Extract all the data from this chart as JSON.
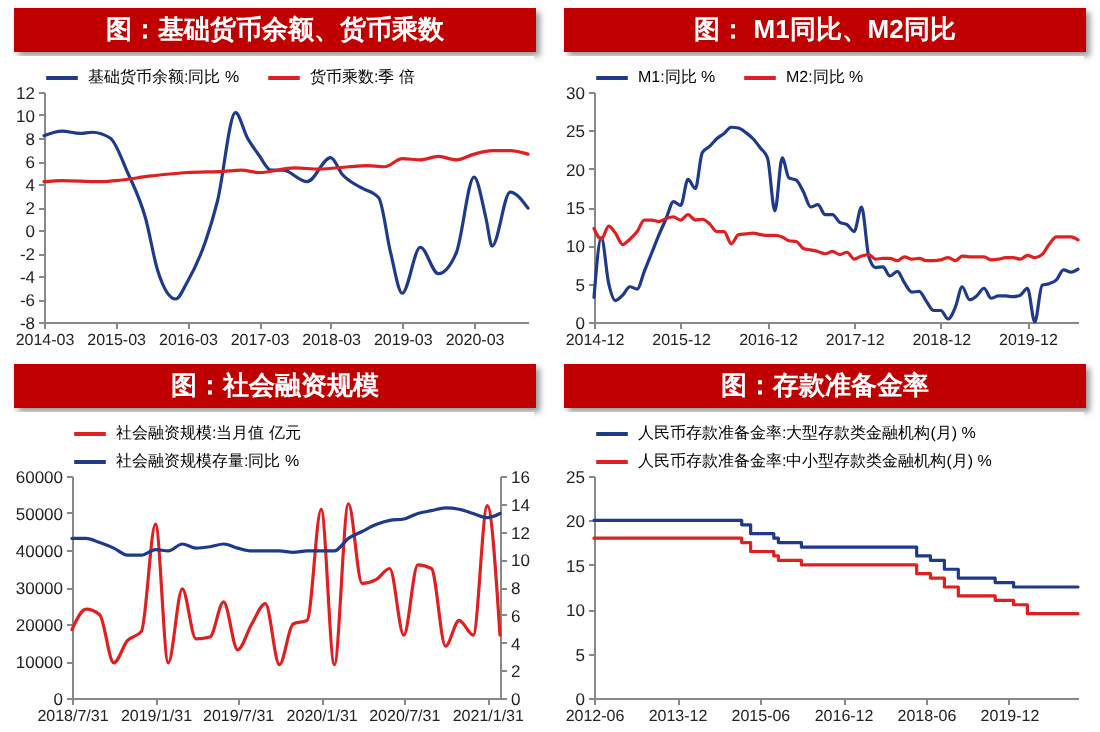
{
  "chart_data": [
    {
      "type": "line",
      "title": "图：基础货币余额、货币乘数",
      "legend": "top",
      "xlim": [
        "2014-03",
        "2020-12"
      ],
      "xticks": [
        "2014-03",
        "2015-03",
        "2016-03",
        "2017-03",
        "2018-03",
        "2019-03",
        "2020-03"
      ],
      "ylim": [
        -8,
        12
      ],
      "yticks": [
        -8,
        -6,
        -4,
        -2,
        0,
        2,
        4,
        6,
        8,
        10,
        12
      ],
      "series": [
        {
          "name": "基础货币余额:同比 %",
          "color": "#1f3a8a",
          "x": [
            "2014-03",
            "2014-06",
            "2014-09",
            "2014-11",
            "2015-02",
            "2015-05",
            "2015-08",
            "2015-10",
            "2016-01",
            "2016-03",
            "2016-06",
            "2016-08",
            "2016-11",
            "2017-01",
            "2017-03",
            "2017-05",
            "2017-07",
            "2017-11",
            "2018-03",
            "2018-05",
            "2018-08",
            "2018-11",
            "2019-01",
            "2019-03",
            "2019-06",
            "2019-09",
            "2019-12",
            "2020-03",
            "2020-05",
            "2020-06",
            "2020-09",
            "2020-12"
          ],
          "values": [
            8.2,
            8.6,
            8.4,
            8.5,
            8.0,
            5.0,
            1.0,
            -3.5,
            -6.0,
            -4.5,
            -1.0,
            2.5,
            10.2,
            8.0,
            6.5,
            5.2,
            5.2,
            4.2,
            6.3,
            4.8,
            3.7,
            2.8,
            -2.0,
            -5.5,
            -1.5,
            -3.8,
            -2.0,
            4.6,
            1.0,
            -1.4,
            3.3,
            1.9
          ]
        },
        {
          "name": "货币乘数:季 倍",
          "color": "#e02020",
          "x": [
            "2014-03",
            "2014-06",
            "2014-12",
            "2015-03",
            "2015-09",
            "2016-03",
            "2016-09",
            "2016-12",
            "2017-03",
            "2017-09",
            "2018-01",
            "2018-06",
            "2018-09",
            "2018-12",
            "2019-03",
            "2019-06",
            "2019-09",
            "2019-12",
            "2020-03",
            "2020-06",
            "2020-09",
            "2020-12"
          ],
          "values": [
            4.2,
            4.3,
            4.2,
            4.3,
            4.7,
            5.0,
            5.1,
            5.2,
            5.0,
            5.4,
            5.3,
            5.5,
            5.6,
            5.5,
            6.2,
            6.1,
            6.4,
            6.1,
            6.6,
            6.9,
            6.9,
            6.6
          ]
        }
      ]
    },
    {
      "type": "line",
      "title": "图： M1同比、M2同比",
      "legend": "top",
      "xlim": [
        "2014-12",
        "2020-07"
      ],
      "xticks": [
        "2014-12",
        "2015-12",
        "2016-12",
        "2017-12",
        "2018-12",
        "2019-12"
      ],
      "ylim": [
        0,
        30
      ],
      "yticks": [
        0,
        5,
        10,
        15,
        20,
        25,
        30
      ],
      "x": [
        "2014-12",
        "2015-01",
        "2015-02",
        "2015-03",
        "2015-04",
        "2015-05",
        "2015-06",
        "2015-07",
        "2015-08",
        "2015-09",
        "2015-10",
        "2015-11",
        "2015-12",
        "2016-01",
        "2016-02",
        "2016-03",
        "2016-04",
        "2016-05",
        "2016-06",
        "2016-07",
        "2016-08",
        "2016-09",
        "2016-10",
        "2016-11",
        "2016-12",
        "2017-01",
        "2017-02",
        "2017-03",
        "2017-04",
        "2017-05",
        "2017-06",
        "2017-07",
        "2017-08",
        "2017-09",
        "2017-10",
        "2017-11",
        "2017-12",
        "2018-01",
        "2018-02",
        "2018-03",
        "2018-04",
        "2018-05",
        "2018-06",
        "2018-07",
        "2018-08",
        "2018-09",
        "2018-10",
        "2018-11",
        "2018-12",
        "2019-01",
        "2019-02",
        "2019-03",
        "2019-04",
        "2019-05",
        "2019-06",
        "2019-07",
        "2019-08",
        "2019-09",
        "2019-10",
        "2019-11",
        "2019-12",
        "2020-01",
        "2020-02",
        "2020-03",
        "2020-04",
        "2020-05",
        "2020-06",
        "2020-07"
      ],
      "series": [
        {
          "name": "M1:同比 %",
          "color": "#1f3a8a",
          "values": [
            3.2,
            11,
            5,
            2.8,
            3.5,
            4.6,
            4.3,
            6.6,
            9,
            11.4,
            13.5,
            15.7,
            15.2,
            18.6,
            17.4,
            22.1,
            22.9,
            23.9,
            24.6,
            25.4,
            25.3,
            24.7,
            23.9,
            22.7,
            21.4,
            14.5,
            21.4,
            18.8,
            18.5,
            17.0,
            15.0,
            15.3,
            14.0,
            14.0,
            13.0,
            12.7,
            11.8,
            15.0,
            8.5,
            7.1,
            7.2,
            6.0,
            6.6,
            5.1,
            3.9,
            4.0,
            2.7,
            1.5,
            1.5,
            0.4,
            2.0,
            4.6,
            2.9,
            3.4,
            4.4,
            3.1,
            3.4,
            3.4,
            3.3,
            3.5,
            4.4,
            0.0,
            4.8,
            5.0,
            5.5,
            6.8,
            6.5,
            6.9
          ]
        },
        {
          "name": "M2:同比 %",
          "color": "#e02020",
          "values": [
            12.2,
            10.8,
            12.5,
            11.6,
            10.1,
            10.8,
            11.8,
            13.3,
            13.3,
            13.1,
            13.5,
            13.7,
            13.3,
            14.0,
            13.3,
            13.4,
            12.8,
            11.8,
            11.8,
            10.2,
            11.4,
            11.5,
            11.6,
            11.4,
            11.3,
            11.3,
            11.1,
            10.6,
            10.5,
            9.6,
            9.4,
            9.2,
            8.9,
            9.2,
            8.8,
            9.1,
            8.2,
            8.6,
            8.8,
            8.2,
            8.3,
            8.3,
            8.0,
            8.5,
            8.2,
            8.3,
            8.0,
            8.0,
            8.1,
            8.4,
            8.0,
            8.6,
            8.5,
            8.5,
            8.5,
            8.1,
            8.2,
            8.4,
            8.4,
            8.2,
            8.7,
            8.4,
            8.8,
            10.1,
            11.1,
            11.1,
            11.1,
            10.7
          ]
        }
      ]
    },
    {
      "type": "line",
      "title": "图：社会融资规模",
      "legend": "top",
      "xlim": [
        "2018-07-31",
        "2021-02-28"
      ],
      "xticks": [
        {
          "value": "2018-07-31",
          "label": "2018/7/31"
        },
        {
          "value": "2019-01-31",
          "label": "2019/1/31"
        },
        {
          "value": "2019-07-31",
          "label": "2019/7/31"
        },
        {
          "value": "2020-01-31",
          "label": "2020/1/31"
        },
        {
          "value": "2020-07-31",
          "label": "2020/7/31"
        },
        {
          "value": "2021-01-31",
          "label": "2021/1/31"
        }
      ],
      "ylim": [
        0,
        60000
      ],
      "yticks": [
        0,
        10000,
        20000,
        30000,
        40000,
        50000,
        60000
      ],
      "y2lim": [
        0,
        16
      ],
      "y2ticks": [
        0,
        2,
        4,
        6,
        8,
        10,
        12,
        14,
        16
      ],
      "x": [
        "2018-07-31",
        "2018-08-31",
        "2018-09-30",
        "2018-10-31",
        "2018-11-30",
        "2018-12-31",
        "2019-01-31",
        "2019-02-28",
        "2019-03-31",
        "2019-04-30",
        "2019-05-31",
        "2019-06-30",
        "2019-07-31",
        "2019-08-31",
        "2019-09-30",
        "2019-10-31",
        "2019-11-30",
        "2019-12-31",
        "2020-01-31",
        "2020-02-29",
        "2020-03-31",
        "2020-04-30",
        "2020-05-31",
        "2020-06-30",
        "2020-07-31",
        "2020-08-31",
        "2020-09-30",
        "2020-10-31",
        "2020-11-30",
        "2020-12-31",
        "2021-01-31",
        "2021-02-28"
      ],
      "series": [
        {
          "name": "社会融资规模:当月值 亿元",
          "color": "#e02020",
          "values": [
            18500,
            24000,
            22500,
            9500,
            15500,
            18000,
            47000,
            9500,
            29500,
            16000,
            16500,
            26000,
            13000,
            20000,
            25500,
            9000,
            20000,
            21000,
            51000,
            9000,
            52500,
            31000,
            32000,
            35000,
            17000,
            36000,
            35000,
            14000,
            21000,
            17000,
            52000,
            17000
          ]
        },
        {
          "name": "社会融资规模存量:同比 %",
          "color": "#1f3a8a",
          "axis": "y2",
          "values": [
            11.5,
            11.5,
            11.2,
            10.8,
            10.3,
            10.3,
            10.7,
            10.6,
            11.1,
            10.8,
            10.9,
            11.1,
            10.8,
            10.6,
            10.6,
            10.6,
            10.5,
            10.6,
            10.6,
            10.6,
            11.5,
            12.0,
            12.5,
            12.8,
            12.9,
            13.3,
            13.5,
            13.7,
            13.6,
            13.3,
            13.0,
            13.3
          ]
        }
      ]
    },
    {
      "type": "step",
      "title": "图：存款准备金率",
      "legend": "top",
      "xlim": [
        "2012-06",
        "2021-03"
      ],
      "xticks": [
        "2012-06",
        "2013-12",
        "2015-06",
        "2016-12",
        "2018-06",
        "2019-12"
      ],
      "ylim": [
        0,
        25
      ],
      "yticks": [
        0,
        5,
        10,
        15,
        20,
        25
      ],
      "series": [
        {
          "name": "人民币存款准备金率:大型存款类金融机构(月) %",
          "color": "#1f3a8a",
          "x": [
            "2012-06",
            "2015-02",
            "2015-04",
            "2015-09",
            "2015-10",
            "2016-03",
            "2018-04",
            "2018-07",
            "2018-10",
            "2019-01",
            "2019-09",
            "2020-01",
            "2021-03"
          ],
          "values": [
            20,
            19.5,
            18.5,
            18,
            17.5,
            17,
            16,
            15.5,
            14.5,
            13.5,
            13,
            12.5,
            12.5
          ]
        },
        {
          "name": "人民币存款准备金率:中小型存款类金融机构(月) %",
          "color": "#e02020",
          "x": [
            "2012-06",
            "2015-02",
            "2015-04",
            "2015-09",
            "2015-10",
            "2016-03",
            "2018-04",
            "2018-07",
            "2018-10",
            "2019-01",
            "2019-09",
            "2020-01",
            "2020-04",
            "2021-03"
          ],
          "values": [
            18,
            17.5,
            16.5,
            16,
            15.5,
            15,
            14,
            13.5,
            12.5,
            11.5,
            11,
            10.5,
            9.5,
            9.5
          ]
        }
      ]
    }
  ]
}
